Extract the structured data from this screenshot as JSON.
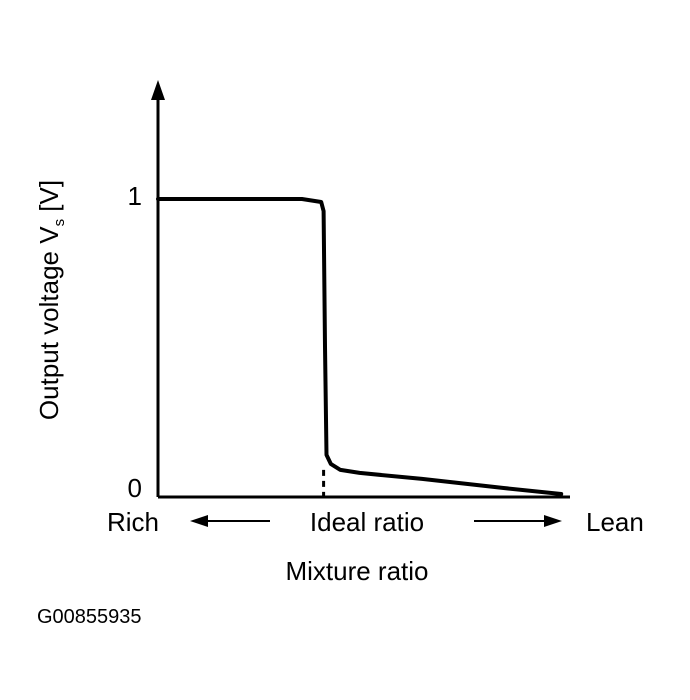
{
  "chart_data": {
    "type": "line",
    "title": "",
    "xlabel": "Mixture ratio",
    "ylabel": "Output voltage Vs [V]",
    "ylabel_main": "Output voltage V",
    "ylabel_sub": "s",
    "ylabel_unit": " [V]",
    "yticks": [
      {
        "value": 0,
        "label": "0"
      },
      {
        "value": 1,
        "label": "1"
      }
    ],
    "ylim": [
      0,
      1
    ],
    "x_direction_labels": {
      "left": "Rich",
      "center": "Ideal ratio",
      "right": "Lean"
    },
    "series": [
      {
        "x": [
          0,
          0.3,
          0.34,
          0.345,
          0.348,
          0.351,
          0.36,
          0.38,
          0.42,
          0.55,
          0.72,
          0.84
        ],
        "y": [
          0.99,
          0.99,
          0.98,
          0.95,
          0.5,
          0.14,
          0.11,
          0.09,
          0.08,
          0.06,
          0.03,
          0.01
        ]
      }
    ],
    "grid": false,
    "ideal_marker_x": 0.345
  },
  "figure_id": "G00855935"
}
